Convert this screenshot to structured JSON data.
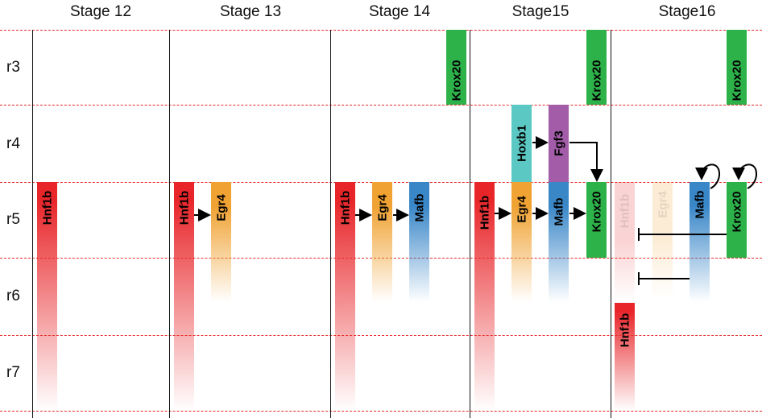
{
  "stages": [
    "Stage 12",
    "Stage 13",
    "Stage 14",
    "Stage15",
    "Stage16"
  ],
  "rows": [
    "r3",
    "r4",
    "r5",
    "r6",
    "r7"
  ],
  "genes": {
    "s12": [
      "Hnf1b"
    ],
    "s13": [
      "Hnf1b",
      "Egr4"
    ],
    "s14": [
      "Hnf1b",
      "Egr4",
      "Mafb",
      "Krox20"
    ],
    "s15": [
      "Hnf1b",
      "Egr4",
      "Mafb",
      "Krox20",
      "Hoxb1",
      "Fgf3",
      "Krox20"
    ],
    "s16": [
      "Hnf1b",
      "Egr4",
      "Mafb",
      "Krox20",
      "Hnf1b",
      "Krox20"
    ]
  },
  "colors": {
    "Hnf1b": "#e8262a",
    "Egr4": "#f0a232",
    "Mafb": "#3a87c8",
    "Krox20": "#2db24a",
    "Hoxb1": "#5cc8c4",
    "Fgf3": "#a25ca8",
    "row_divider": "#e8282a"
  }
}
